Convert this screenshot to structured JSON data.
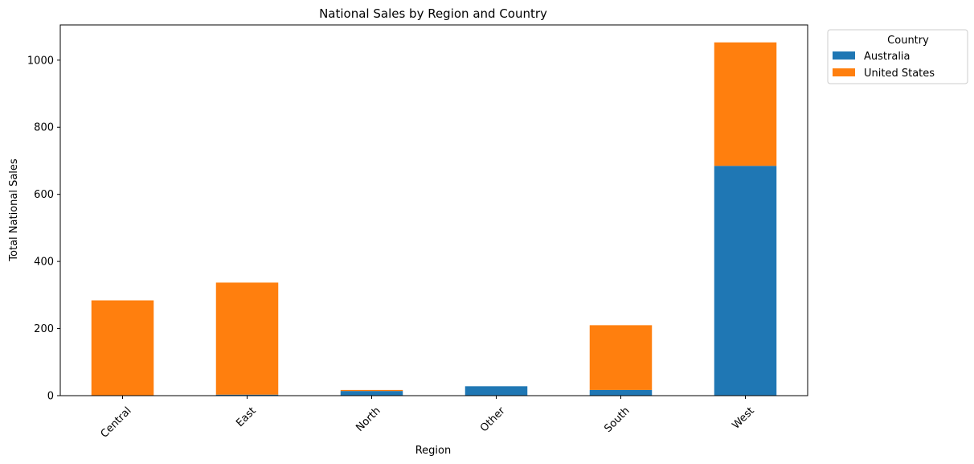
{
  "chart_data": {
    "type": "bar",
    "stacked": true,
    "title": "National Sales by Region and Country",
    "xlabel": "Region",
    "ylabel": "Total National Sales",
    "categories": [
      "Central",
      "East",
      "North",
      "Other",
      "South",
      "West"
    ],
    "series": [
      {
        "name": "Australia",
        "color": "#1f77b4",
        "values": [
          0,
          3,
          14,
          28,
          17,
          685
        ]
      },
      {
        "name": "United States",
        "color": "#ff7f0e",
        "values": [
          284,
          334,
          3,
          0,
          193,
          368
        ]
      }
    ],
    "ylim": [
      0,
      1105
    ],
    "yticks": [
      0,
      200,
      400,
      600,
      800,
      1000
    ],
    "grid": false,
    "legend": {
      "title": "Country",
      "placement": "outside-top-right"
    }
  }
}
